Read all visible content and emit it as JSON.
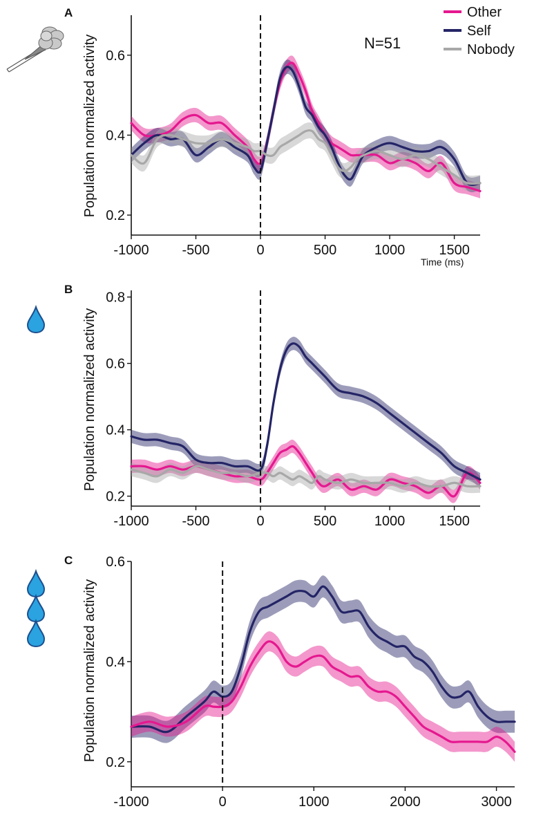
{
  "figure": {
    "legend": {
      "items": [
        {
          "label": "Other",
          "color": "#e5188f"
        },
        {
          "label": "Self",
          "color": "#242466"
        },
        {
          "label": "Nobody",
          "color": "#a8a8a8"
        }
      ]
    },
    "n_label": "N=51",
    "time_label": "Time (ms)",
    "icons": {
      "panel_a": "eye-tracker-device-icon",
      "panel_b": "single-water-drop-icon",
      "panel_c": "three-water-drops-icon"
    },
    "colors": {
      "other": "#e5188f",
      "self": "#242466",
      "nobody": "#a8a8a8"
    }
  },
  "chart_data": [
    {
      "panel": "A",
      "type": "line",
      "ylabel": "Population normalized activity",
      "xlim": [
        -1000,
        1700
      ],
      "ylim": [
        0.15,
        0.7
      ],
      "xticks": [
        -1000,
        -500,
        0,
        500,
        1000,
        1500
      ],
      "yticks": [
        0.2,
        0.4,
        0.6
      ],
      "ytick_labels": [
        "0.2",
        "0.4",
        "0.6"
      ],
      "event_line_x": 0,
      "x": [
        -1000,
        -900,
        -800,
        -700,
        -600,
        -500,
        -400,
        -300,
        -200,
        -100,
        -50,
        0,
        50,
        100,
        150,
        200,
        250,
        300,
        350,
        400,
        450,
        500,
        550,
        600,
        650,
        700,
        750,
        800,
        900,
        1000,
        1100,
        1200,
        1300,
        1400,
        1500,
        1600,
        1700
      ],
      "series": [
        {
          "name": "Other",
          "band": 0.018,
          "values": [
            0.43,
            0.4,
            0.4,
            0.41,
            0.44,
            0.45,
            0.43,
            0.43,
            0.4,
            0.37,
            0.34,
            0.33,
            0.38,
            0.46,
            0.53,
            0.57,
            0.58,
            0.55,
            0.51,
            0.46,
            0.43,
            0.4,
            0.38,
            0.37,
            0.36,
            0.35,
            0.35,
            0.35,
            0.35,
            0.33,
            0.34,
            0.33,
            0.31,
            0.33,
            0.28,
            0.27,
            0.26
          ]
        },
        {
          "name": "Self",
          "band": 0.018,
          "values": [
            0.35,
            0.38,
            0.4,
            0.39,
            0.39,
            0.35,
            0.37,
            0.39,
            0.37,
            0.35,
            0.32,
            0.31,
            0.38,
            0.46,
            0.54,
            0.57,
            0.56,
            0.52,
            0.47,
            0.45,
            0.42,
            0.4,
            0.37,
            0.33,
            0.3,
            0.29,
            0.32,
            0.35,
            0.37,
            0.38,
            0.37,
            0.36,
            0.36,
            0.37,
            0.34,
            0.28,
            0.28
          ]
        },
        {
          "name": "Nobody",
          "band": 0.02,
          "values": [
            0.35,
            0.33,
            0.39,
            0.4,
            0.39,
            0.38,
            0.38,
            0.39,
            0.38,
            0.37,
            0.36,
            0.36,
            0.35,
            0.35,
            0.37,
            0.38,
            0.39,
            0.4,
            0.41,
            0.41,
            0.39,
            0.38,
            0.35,
            0.32,
            0.31,
            0.32,
            0.34,
            0.35,
            0.36,
            0.35,
            0.34,
            0.35,
            0.34,
            0.32,
            0.3,
            0.28,
            0.28
          ]
        }
      ]
    },
    {
      "panel": "B",
      "type": "line",
      "ylabel": "Population normalized activity",
      "xlim": [
        -1000,
        1700
      ],
      "ylim": [
        0.17,
        0.82
      ],
      "xticks": [
        -1000,
        -500,
        0,
        500,
        1000,
        1500
      ],
      "yticks": [
        0.2,
        0.4,
        0.6,
        0.8
      ],
      "ytick_labels": [
        "0.2",
        "0.4",
        "0.6",
        "0.8"
      ],
      "event_line_x": 0,
      "x": [
        -1000,
        -900,
        -800,
        -700,
        -600,
        -500,
        -400,
        -300,
        -200,
        -100,
        0,
        50,
        100,
        150,
        200,
        250,
        300,
        350,
        400,
        450,
        500,
        600,
        700,
        800,
        900,
        1000,
        1100,
        1200,
        1300,
        1400,
        1500,
        1600,
        1700
      ],
      "series": [
        {
          "name": "Other",
          "band": 0.02,
          "values": [
            0.29,
            0.29,
            0.28,
            0.29,
            0.28,
            0.29,
            0.28,
            0.27,
            0.26,
            0.26,
            0.25,
            0.27,
            0.3,
            0.33,
            0.34,
            0.35,
            0.33,
            0.3,
            0.27,
            0.24,
            0.23,
            0.25,
            0.22,
            0.23,
            0.22,
            0.25,
            0.24,
            0.23,
            0.21,
            0.23,
            0.2,
            0.27,
            0.24
          ]
        },
        {
          "name": "Self",
          "band": 0.02,
          "values": [
            0.38,
            0.37,
            0.37,
            0.36,
            0.35,
            0.31,
            0.3,
            0.3,
            0.29,
            0.29,
            0.28,
            0.35,
            0.48,
            0.58,
            0.64,
            0.66,
            0.65,
            0.62,
            0.6,
            0.58,
            0.56,
            0.52,
            0.51,
            0.5,
            0.48,
            0.45,
            0.42,
            0.39,
            0.36,
            0.33,
            0.29,
            0.27,
            0.25
          ]
        },
        {
          "name": "Nobody",
          "band": 0.02,
          "values": [
            0.28,
            0.27,
            0.26,
            0.28,
            0.27,
            0.29,
            0.28,
            0.27,
            0.27,
            0.26,
            0.27,
            0.27,
            0.26,
            0.27,
            0.26,
            0.25,
            0.26,
            0.25,
            0.24,
            0.26,
            0.25,
            0.24,
            0.25,
            0.24,
            0.24,
            0.24,
            0.23,
            0.24,
            0.23,
            0.23,
            0.24,
            0.23,
            0.23
          ]
        }
      ]
    },
    {
      "panel": "C",
      "type": "line",
      "ylabel": "Population normalized activity",
      "xlim": [
        -1000,
        3200
      ],
      "ylim": [
        0.15,
        0.6
      ],
      "xticks": [
        -1000,
        0,
        1000,
        2000,
        3000
      ],
      "yticks": [
        0.2,
        0.4,
        0.6
      ],
      "ytick_labels": [
        "0.2",
        "0.4",
        "0.6"
      ],
      "event_line_x": 0,
      "x": [
        -1000,
        -800,
        -600,
        -400,
        -200,
        -100,
        0,
        100,
        200,
        300,
        400,
        500,
        600,
        700,
        800,
        900,
        1000,
        1100,
        1200,
        1300,
        1400,
        1500,
        1600,
        1700,
        1800,
        1900,
        2000,
        2100,
        2200,
        2300,
        2400,
        2500,
        2600,
        2700,
        2800,
        2900,
        3000,
        3100,
        3200
      ],
      "series": [
        {
          "name": "Self",
          "band": 0.022,
          "values": [
            0.27,
            0.27,
            0.26,
            0.29,
            0.32,
            0.34,
            0.33,
            0.34,
            0.39,
            0.46,
            0.5,
            0.51,
            0.52,
            0.53,
            0.54,
            0.54,
            0.53,
            0.55,
            0.53,
            0.5,
            0.5,
            0.5,
            0.47,
            0.45,
            0.44,
            0.43,
            0.43,
            0.41,
            0.4,
            0.38,
            0.35,
            0.33,
            0.33,
            0.34,
            0.31,
            0.29,
            0.28,
            0.28,
            0.28
          ]
        },
        {
          "name": "Other",
          "band": 0.02,
          "values": [
            0.27,
            0.28,
            0.27,
            0.28,
            0.31,
            0.31,
            0.31,
            0.32,
            0.35,
            0.39,
            0.42,
            0.44,
            0.43,
            0.4,
            0.39,
            0.4,
            0.41,
            0.41,
            0.39,
            0.38,
            0.37,
            0.37,
            0.35,
            0.34,
            0.34,
            0.33,
            0.31,
            0.29,
            0.27,
            0.26,
            0.25,
            0.24,
            0.24,
            0.24,
            0.24,
            0.24,
            0.25,
            0.24,
            0.22
          ]
        }
      ]
    }
  ]
}
